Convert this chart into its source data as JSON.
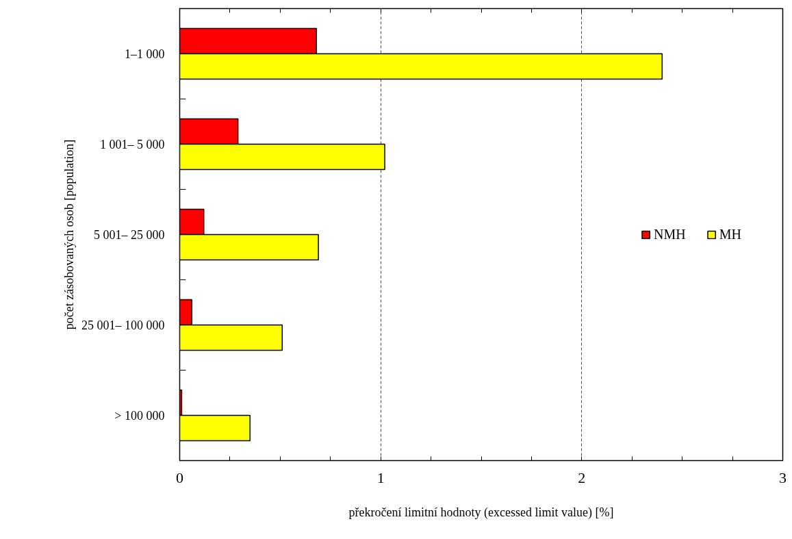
{
  "chart_data": {
    "type": "bar",
    "orientation": "horizontal",
    "xlabel": "překročení limitní hodnoty (excessed limit value) [%]",
    "ylabel": "počet zásobovaných osob [population]",
    "categories": [
      "1–1 000",
      "1 001– 5 000",
      "5 001– 25 000",
      "25 001– 100 000",
      "> 100 000"
    ],
    "series": [
      {
        "name": "NMH",
        "color": "#ff0000",
        "values": [
          0.68,
          0.29,
          0.12,
          0.06,
          0.01
        ]
      },
      {
        "name": "MH",
        "color": "#ffff00",
        "values": [
          2.4,
          1.02,
          0.69,
          0.51,
          0.35
        ]
      }
    ],
    "xlim": [
      0,
      3
    ],
    "xticks": [
      0,
      {
        "value": 0.25,
        "label": null
      },
      {
        "value": 0.5,
        "label": null
      },
      {
        "value": 0.75,
        "label": null
      },
      1,
      {
        "value": 1.25,
        "label": null
      },
      {
        "value": 1.5,
        "label": null
      },
      {
        "value": 1.75,
        "label": null
      },
      2,
      {
        "value": 2.25,
        "label": null
      },
      {
        "value": 2.5,
        "label": null
      },
      {
        "value": 2.75,
        "label": null
      },
      3
    ],
    "grid": "x",
    "legend": "right"
  }
}
